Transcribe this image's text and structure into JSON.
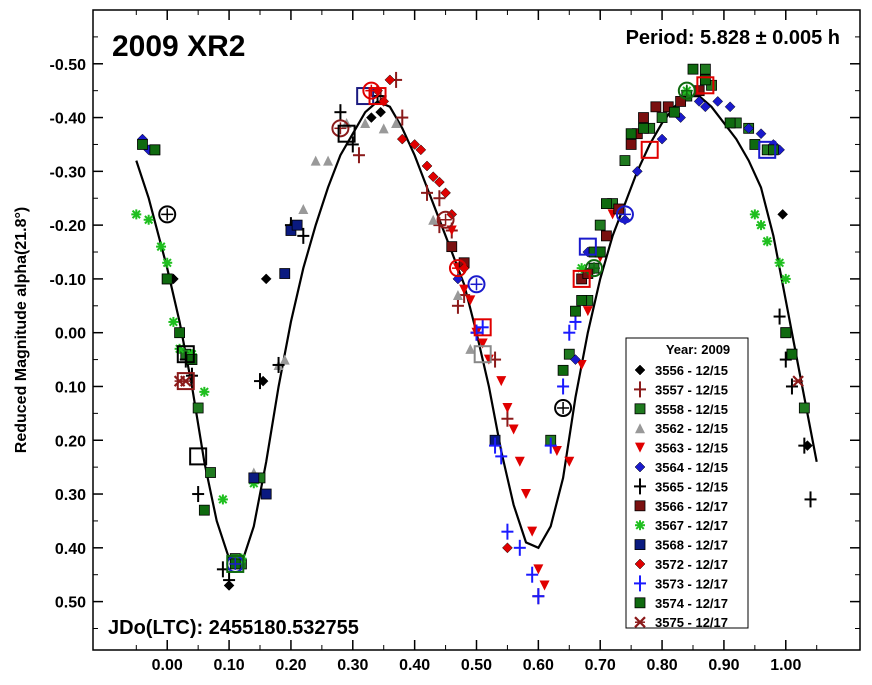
{
  "chart_data": {
    "type": "scatter",
    "title": "2009 XR2",
    "period_label": "Period: 5.828 ± 0.005 h",
    "epoch_label": "JDo(LTC): 2455180.532755",
    "ylabel": "Reduced Magnitude alpha(21.8°)",
    "xlabel": "",
    "xlim": [
      -0.12,
      1.12
    ],
    "ylim": [
      0.59,
      -0.6
    ],
    "y_inverted": true,
    "grid": false,
    "legend_position": "bottom-right",
    "legend_title": "Year: 2009",
    "x_ticks": [
      {
        "value": 0.0,
        "label": "0.00"
      },
      {
        "value": 0.1,
        "label": "0.10"
      },
      {
        "value": 0.2,
        "label": "0.20"
      },
      {
        "value": 0.3,
        "label": "0.30"
      },
      {
        "value": 0.4,
        "label": "0.40"
      },
      {
        "value": 0.5,
        "label": "0.50"
      },
      {
        "value": 0.6,
        "label": "0.60"
      },
      {
        "value": 0.7,
        "label": "0.70"
      },
      {
        "value": 0.8,
        "label": "0.80"
      },
      {
        "value": 0.9,
        "label": "0.90"
      },
      {
        "value": 1.0,
        "label": "1.00"
      }
    ],
    "y_ticks": [
      {
        "value": -0.5,
        "label": "-0.50"
      },
      {
        "value": -0.4,
        "label": "-0.40"
      },
      {
        "value": -0.3,
        "label": "-0.30"
      },
      {
        "value": -0.2,
        "label": "-0.20"
      },
      {
        "value": -0.1,
        "label": "-0.10"
      },
      {
        "value": 0.0,
        "label": "0.00"
      },
      {
        "value": 0.1,
        "label": "0.10"
      },
      {
        "value": 0.2,
        "label": "0.20"
      },
      {
        "value": 0.3,
        "label": "0.30"
      },
      {
        "value": 0.4,
        "label": "0.40"
      },
      {
        "value": 0.5,
        "label": "0.50"
      }
    ],
    "fit_curve": [
      [
        -0.05,
        -0.32
      ],
      [
        -0.03,
        -0.25
      ],
      [
        0.0,
        -0.12
      ],
      [
        0.02,
        -0.02
      ],
      [
        0.04,
        0.1
      ],
      [
        0.06,
        0.24
      ],
      [
        0.08,
        0.35
      ],
      [
        0.1,
        0.42
      ],
      [
        0.12,
        0.43
      ],
      [
        0.14,
        0.36
      ],
      [
        0.16,
        0.24
      ],
      [
        0.18,
        0.1
      ],
      [
        0.2,
        -0.02
      ],
      [
        0.22,
        -0.12
      ],
      [
        0.24,
        -0.2
      ],
      [
        0.26,
        -0.27
      ],
      [
        0.28,
        -0.33
      ],
      [
        0.3,
        -0.37
      ],
      [
        0.32,
        -0.41
      ],
      [
        0.34,
        -0.43
      ],
      [
        0.36,
        -0.42
      ],
      [
        0.38,
        -0.38
      ],
      [
        0.4,
        -0.33
      ],
      [
        0.42,
        -0.27
      ],
      [
        0.44,
        -0.21
      ],
      [
        0.46,
        -0.15
      ],
      [
        0.48,
        -0.09
      ],
      [
        0.5,
        0.0
      ],
      [
        0.52,
        0.1
      ],
      [
        0.54,
        0.22
      ],
      [
        0.56,
        0.32
      ],
      [
        0.58,
        0.39
      ],
      [
        0.6,
        0.4
      ],
      [
        0.62,
        0.36
      ],
      [
        0.64,
        0.27
      ],
      [
        0.66,
        0.12
      ],
      [
        0.68,
        0.0
      ],
      [
        0.7,
        -0.1
      ],
      [
        0.72,
        -0.18
      ],
      [
        0.74,
        -0.24
      ],
      [
        0.76,
        -0.3
      ],
      [
        0.78,
        -0.35
      ],
      [
        0.8,
        -0.39
      ],
      [
        0.82,
        -0.42
      ],
      [
        0.84,
        -0.44
      ],
      [
        0.86,
        -0.44
      ],
      [
        0.88,
        -0.42
      ],
      [
        0.9,
        -0.39
      ],
      [
        0.92,
        -0.36
      ],
      [
        0.94,
        -0.32
      ],
      [
        0.96,
        -0.27
      ],
      [
        0.98,
        -0.18
      ],
      [
        1.0,
        -0.06
      ],
      [
        1.02,
        0.06
      ],
      [
        1.04,
        0.18
      ],
      [
        1.05,
        0.24
      ]
    ],
    "series": [
      {
        "name": "3556 - 12/15",
        "marker": "diamond",
        "color": "#000000",
        "x": [
          0.01,
          0.155,
          0.16,
          0.1,
          0.995,
          1.035,
          0.345,
          0.33
        ],
        "y": [
          -0.1,
          0.09,
          -0.1,
          0.47,
          -0.22,
          0.21,
          -0.41,
          -0.4
        ]
      },
      {
        "name": "3557 - 12/15",
        "marker": "plus",
        "color": "#8b1a1a",
        "x": [
          0.31,
          0.345,
          0.38,
          0.42,
          0.44,
          0.46,
          0.48,
          0.5,
          0.53,
          0.55,
          0.6,
          0.47,
          0.44,
          0.37
        ],
        "y": [
          -0.33,
          -0.44,
          -0.4,
          -0.26,
          -0.25,
          -0.19,
          -0.07,
          0.0,
          0.05,
          0.16,
          0.49,
          -0.05,
          -0.2,
          -0.47
        ]
      },
      {
        "name": "3558 - 12/15",
        "marker": "square",
        "color": "#1f7a1f",
        "x": [
          -0.02,
          0.0,
          0.03,
          0.05,
          0.07,
          0.11,
          0.12,
          0.15,
          0.62,
          0.65,
          0.68,
          0.69,
          0.7,
          0.72,
          0.74,
          0.78,
          0.8,
          0.84,
          0.87,
          0.88,
          0.92,
          0.94,
          0.97,
          1.0,
          1.01,
          1.03
        ],
        "y": [
          -0.34,
          -0.1,
          0.04,
          0.14,
          0.26,
          0.42,
          0.43,
          0.27,
          0.2,
          0.04,
          -0.06,
          -0.12,
          -0.2,
          -0.24,
          -0.32,
          -0.38,
          -0.4,
          -0.44,
          -0.49,
          -0.46,
          -0.39,
          -0.38,
          -0.34,
          0.0,
          0.04,
          0.14
        ]
      },
      {
        "name": "3562 - 12/15",
        "marker": "triangle",
        "color": "#999999",
        "x": [
          0.18,
          0.19,
          0.2,
          0.22,
          0.24,
          0.26,
          0.29,
          0.32,
          0.35,
          0.37,
          0.43,
          0.47,
          0.49,
          0.14
        ],
        "y": [
          0.06,
          0.05,
          -0.2,
          -0.23,
          -0.32,
          -0.32,
          -0.39,
          -0.39,
          -0.38,
          -0.39,
          -0.21,
          -0.07,
          0.03,
          0.26
        ]
      },
      {
        "name": "3563 - 12/15",
        "marker": "triangle-down",
        "color": "#e00000",
        "x": [
          0.46,
          0.47,
          0.48,
          0.49,
          0.5,
          0.51,
          0.52,
          0.54,
          0.55,
          0.56,
          0.57,
          0.58,
          0.59,
          0.6,
          0.61,
          0.63,
          0.65,
          0.67,
          0.68,
          0.7,
          0.72
        ],
        "y": [
          -0.19,
          -0.12,
          -0.08,
          -0.06,
          0.0,
          0.02,
          0.05,
          0.09,
          0.14,
          0.18,
          0.24,
          0.3,
          0.37,
          0.44,
          0.47,
          0.22,
          0.24,
          0.06,
          -0.04,
          -0.14,
          -0.22
        ]
      },
      {
        "name": "3564 - 12/15",
        "marker": "diamond",
        "color": "#1a1acc",
        "x": [
          -0.04,
          -0.03,
          0.47,
          0.68,
          0.74,
          0.76,
          0.8,
          0.83,
          0.86,
          0.87,
          0.89,
          0.91,
          0.94,
          0.96,
          0.98,
          0.99,
          0.66
        ],
        "y": [
          -0.36,
          -0.34,
          -0.1,
          -0.15,
          -0.21,
          -0.3,
          -0.36,
          -0.4,
          -0.43,
          -0.42,
          -0.43,
          -0.42,
          -0.38,
          -0.37,
          -0.35,
          -0.34,
          0.05
        ]
      },
      {
        "name": "3565 - 12/15",
        "marker": "plus",
        "color": "#000000",
        "x": [
          0.03,
          0.04,
          0.05,
          0.09,
          0.1,
          0.15,
          0.18,
          0.2,
          0.22,
          0.28,
          0.3,
          0.34,
          0.99,
          1.0,
          1.01,
          1.03,
          1.04
        ],
        "y": [
          0.05,
          0.08,
          0.3,
          0.44,
          0.46,
          0.09,
          0.06,
          -0.2,
          -0.18,
          -0.41,
          -0.35,
          -0.44,
          -0.03,
          0.05,
          0.1,
          0.21,
          0.31
        ]
      },
      {
        "name": "3566 - 12/17",
        "marker": "square",
        "color": "#7a1010",
        "x": [
          0.46,
          0.48,
          0.67,
          0.68,
          0.7,
          0.71,
          0.73,
          0.75,
          0.76,
          0.77,
          0.79,
          0.81,
          0.83,
          0.86
        ],
        "y": [
          -0.16,
          -0.13,
          -0.1,
          -0.11,
          -0.15,
          -0.18,
          -0.23,
          -0.35,
          -0.37,
          -0.4,
          -0.42,
          -0.42,
          -0.43,
          -0.45
        ]
      },
      {
        "name": "3567 - 12/17",
        "marker": "asterisk",
        "color": "#1fbf1f",
        "x": [
          -0.05,
          -0.03,
          -0.01,
          0.0,
          0.01,
          0.02,
          0.04,
          0.06,
          0.09,
          0.12,
          0.14,
          0.67,
          0.95,
          0.96,
          0.97,
          0.99,
          1.0,
          0.84
        ],
        "y": [
          -0.22,
          -0.21,
          -0.16,
          -0.13,
          -0.02,
          0.03,
          0.04,
          0.11,
          0.31,
          0.42,
          0.28,
          -0.12,
          -0.22,
          -0.2,
          -0.17,
          -0.13,
          -0.1,
          -0.45
        ]
      },
      {
        "name": "3568 - 12/17",
        "marker": "square",
        "color": "#0a1a80",
        "x": [
          0.14,
          0.16,
          0.19,
          0.2,
          0.21,
          0.53
        ],
        "y": [
          0.27,
          0.3,
          -0.11,
          -0.19,
          -0.2,
          0.2
        ]
      },
      {
        "name": "3572 - 12/17",
        "marker": "diamond",
        "color": "#e00000",
        "x": [
          0.34,
          0.35,
          0.36,
          0.38,
          0.4,
          0.41,
          0.42,
          0.43,
          0.44,
          0.45,
          0.46,
          0.48,
          0.55
        ],
        "y": [
          -0.45,
          -0.43,
          -0.47,
          -0.36,
          -0.35,
          -0.34,
          -0.31,
          -0.29,
          -0.28,
          -0.26,
          -0.22,
          -0.12,
          0.4
        ]
      },
      {
        "name": "3573 - 12/17",
        "marker": "plus",
        "color": "#1a1aff",
        "x": [
          0.5,
          0.51,
          0.53,
          0.54,
          0.55,
          0.57,
          0.59,
          0.6,
          0.62,
          0.64,
          0.65,
          0.66
        ],
        "y": [
          0.0,
          -0.01,
          0.21,
          0.23,
          0.37,
          0.4,
          0.45,
          0.49,
          0.21,
          0.1,
          0.0,
          -0.02
        ]
      },
      {
        "name": "3574 - 12/17",
        "marker": "square",
        "color": "#0f6a0f",
        "x": [
          -0.04,
          -0.02,
          0.0,
          0.02,
          0.04,
          0.06,
          0.11,
          0.64,
          0.66,
          0.67,
          0.69,
          0.7,
          0.71,
          0.75,
          0.77,
          0.82,
          0.85,
          0.87,
          0.91,
          0.95,
          0.98,
          1.0,
          1.01
        ],
        "y": [
          -0.35,
          -0.34,
          -0.1,
          0.0,
          0.05,
          0.33,
          0.43,
          0.07,
          -0.04,
          -0.06,
          -0.15,
          -0.15,
          -0.24,
          -0.37,
          -0.38,
          -0.41,
          -0.49,
          -0.47,
          -0.39,
          -0.35,
          -0.34,
          0.0,
          0.04
        ]
      },
      {
        "name": "3575 - 12/17",
        "marker": "x",
        "color": "#8b1a1a",
        "x": [
          0.02,
          0.03,
          1.02
        ],
        "y": [
          0.09,
          0.09,
          0.09
        ]
      }
    ],
    "highlighted_points": [
      {
        "x": 0.0,
        "y": -0.22,
        "shape": "circle-plus",
        "color": "#000000"
      },
      {
        "x": 0.03,
        "y": 0.04,
        "shape": "square",
        "color": "#000000"
      },
      {
        "x": 0.03,
        "y": 0.09,
        "shape": "square",
        "color": "#8b1a1a"
      },
      {
        "x": 0.05,
        "y": 0.23,
        "shape": "square",
        "color": "#000000"
      },
      {
        "x": 0.11,
        "y": 0.43,
        "shape": "circle-plus",
        "color": "#1a1acc"
      },
      {
        "x": 0.11,
        "y": 0.43,
        "shape": "square",
        "color": "#0f6a0f"
      },
      {
        "x": 0.28,
        "y": -0.38,
        "shape": "circle-plus",
        "color": "#8b1a1a"
      },
      {
        "x": 0.29,
        "y": -0.37,
        "shape": "square",
        "color": "#000000"
      },
      {
        "x": 0.32,
        "y": -0.44,
        "shape": "square",
        "color": "#1a1a80"
      },
      {
        "x": 0.33,
        "y": -0.45,
        "shape": "circle-plus",
        "color": "#e00000"
      },
      {
        "x": 0.34,
        "y": -0.44,
        "shape": "square",
        "color": "#e00000"
      },
      {
        "x": 0.45,
        "y": -0.21,
        "shape": "circle-plus",
        "color": "#8b1a1a"
      },
      {
        "x": 0.47,
        "y": -0.12,
        "shape": "circle-plus",
        "color": "#e00000"
      },
      {
        "x": 0.5,
        "y": -0.09,
        "shape": "circle-plus",
        "color": "#1a1acc"
      },
      {
        "x": 0.51,
        "y": -0.01,
        "shape": "square",
        "color": "#e00000"
      },
      {
        "x": 0.51,
        "y": 0.04,
        "shape": "square",
        "color": "#888888"
      },
      {
        "x": 0.64,
        "y": 0.14,
        "shape": "circle-plus",
        "color": "#000000"
      },
      {
        "x": 0.68,
        "y": -0.16,
        "shape": "square",
        "color": "#1a1acc"
      },
      {
        "x": 0.69,
        "y": -0.12,
        "shape": "circle-plus",
        "color": "#0f6a0f"
      },
      {
        "x": 0.67,
        "y": -0.1,
        "shape": "square",
        "color": "#e00000"
      },
      {
        "x": 0.74,
        "y": -0.22,
        "shape": "circle-plus",
        "color": "#1a1acc"
      },
      {
        "x": 0.78,
        "y": -0.34,
        "shape": "square",
        "color": "#e00000"
      },
      {
        "x": 0.84,
        "y": -0.45,
        "shape": "circle-plus",
        "color": "#0f6a0f"
      },
      {
        "x": 0.87,
        "y": -0.46,
        "shape": "square",
        "color": "#e00000"
      },
      {
        "x": 0.97,
        "y": -0.34,
        "shape": "square",
        "color": "#1a1acc"
      }
    ]
  }
}
